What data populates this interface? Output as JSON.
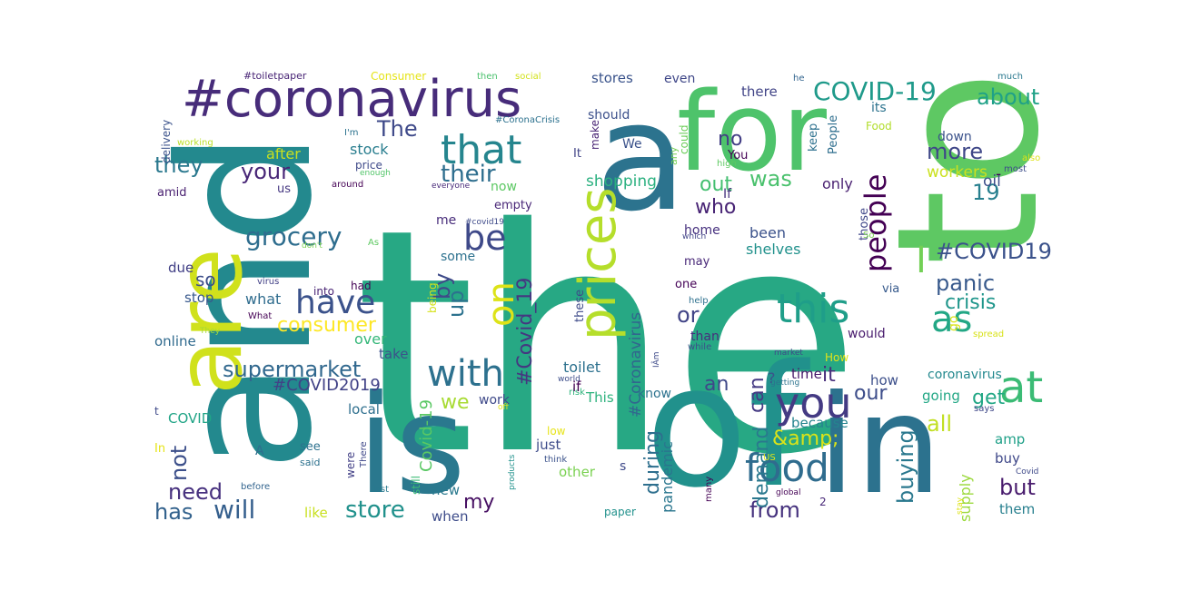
{
  "words": [
    {
      "text": "the",
      "color": "#27a884"
    },
    {
      "text": "to",
      "color": "#5ec863"
    },
    {
      "text": "and",
      "color": "#23898e"
    },
    {
      "text": "of",
      "color": "#21918c"
    },
    {
      "text": "in",
      "color": "#2c728e"
    },
    {
      "text": "a",
      "color": "#2c738e"
    },
    {
      "text": "for",
      "color": "#4ec36b"
    },
    {
      "text": "is",
      "color": "#2a788e"
    },
    {
      "text": "are",
      "color": "#d0e11c"
    },
    {
      "text": "#coronavirus",
      "color": "#472c7a"
    },
    {
      "text": "prices",
      "color": "#b5de2b"
    },
    {
      "text": "food",
      "color": "#2f6c8e"
    },
    {
      "text": "at",
      "color": "#3bbb75"
    },
    {
      "text": "you",
      "color": "#443a83"
    },
    {
      "text": "that",
      "color": "#25858e"
    },
    {
      "text": "this",
      "color": "#1f9e89"
    },
    {
      "text": "with",
      "color": "#2d718e"
    },
    {
      "text": "on",
      "color": "#dde318"
    },
    {
      "text": "as",
      "color": "#22a785"
    },
    {
      "text": "have",
      "color": "#3b528b"
    },
    {
      "text": "be",
      "color": "#3e4989"
    },
    {
      "text": "people",
      "color": "#440154"
    },
    {
      "text": "COVID-19",
      "color": "#1f9a8a"
    },
    {
      "text": "I",
      "color": "#73d056"
    },
    {
      "text": "will",
      "color": "#355f8d"
    },
    {
      "text": "grocery",
      "color": "#2e6d8e"
    },
    {
      "text": "supermarket",
      "color": "#31688e"
    },
    {
      "text": "#COVID19",
      "color": "#3b528b"
    },
    {
      "text": "your",
      "color": "#482677"
    },
    {
      "text": "their",
      "color": "#2e6e8e"
    },
    {
      "text": "store",
      "color": "#21918c"
    },
    {
      "text": "all",
      "color": "#c2df23"
    },
    {
      "text": "about",
      "color": "#1fa187"
    },
    {
      "text": "#Covid_19",
      "color": "#453781"
    },
    {
      "text": "they",
      "color": "#2a788e"
    },
    {
      "text": "has",
      "color": "#33628d"
    },
    {
      "text": "The",
      "color": "#3e4989"
    },
    {
      "text": "consumer",
      "color": "#fde725"
    },
    {
      "text": "panic",
      "color": "#38598c"
    },
    {
      "text": "up",
      "color": "#2c728e"
    },
    {
      "text": "from",
      "color": "#46327e"
    },
    {
      "text": "can",
      "color": "#443983"
    },
    {
      "text": "need",
      "color": "#46307e"
    },
    {
      "text": "by",
      "color": "#3e4a89"
    },
    {
      "text": "crisis",
      "color": "#1f968b"
    },
    {
      "text": "not",
      "color": "#3c4f8a"
    },
    {
      "text": "buying",
      "color": "#2a788e"
    },
    {
      "text": "but",
      "color": "#481b6d"
    },
    {
      "text": "&amp;",
      "color": "#dae319"
    },
    {
      "text": "my",
      "color": "#471063"
    },
    {
      "text": "demand",
      "color": "#2a788e"
    },
    {
      "text": "more",
      "color": "#3f4788"
    },
    {
      "text": "get",
      "color": "#22a785"
    },
    {
      "text": "during",
      "color": "#2e6f8e"
    },
    {
      "text": "or",
      "color": "#414487"
    },
    {
      "text": "who",
      "color": "#482475"
    },
    {
      "text": "19",
      "color": "#277f8e"
    },
    {
      "text": "our",
      "color": "#3d4d8a"
    },
    {
      "text": "it",
      "color": "#472d7b"
    },
    {
      "text": "was",
      "color": "#4ac16d"
    },
    {
      "text": "an",
      "color": "#3f4889"
    },
    {
      "text": "out",
      "color": "#44bf70"
    },
    {
      "text": "no",
      "color": "#433e85"
    },
    {
      "text": "we",
      "color": "#a8db34"
    },
    {
      "text": "so",
      "color": "#3d4e8a"
    },
    {
      "text": "#COVID2019",
      "color": "#414287"
    },
    {
      "text": "Covid-19",
      "color": "#5ac864"
    },
    {
      "text": "pandemic",
      "color": "#2a768e"
    },
    {
      "text": "#Coronavirus",
      "color": "#31668e"
    },
    {
      "text": "shopping",
      "color": "#2ab07f"
    },
    {
      "text": "supply",
      "color": "#9bd93c"
    },
    {
      "text": "workers",
      "color": "#cae11f"
    },
    {
      "text": "oil",
      "color": "#3d4e8a"
    },
    {
      "text": "shelves",
      "color": "#21918c"
    },
    {
      "text": "been",
      "color": "#3b528b"
    },
    {
      "text": "only",
      "color": "#481f70"
    },
    {
      "text": "stores",
      "color": "#3a538b"
    },
    {
      "text": "stock",
      "color": "#287d8e"
    },
    {
      "text": "after",
      "color": "#c8e020"
    },
    {
      "text": "what",
      "color": "#2f6c8e"
    },
    {
      "text": "due",
      "color": "#424086"
    },
    {
      "text": "stop",
      "color": "#38588c"
    },
    {
      "text": "online",
      "color": "#306a8e"
    },
    {
      "text": "over",
      "color": "#35b779"
    },
    {
      "text": "take",
      "color": "#3b528b"
    },
    {
      "text": "toilet",
      "color": "#2d718e"
    },
    {
      "text": "like",
      "color": "#c8e020"
    },
    {
      "text": "when",
      "color": "#3e4c8a"
    },
    {
      "text": "new",
      "color": "#29798e"
    },
    {
      "text": "local",
      "color": "#2e6f8e"
    },
    {
      "text": "COVID",
      "color": "#20a486"
    },
    {
      "text": "just",
      "color": "#3e4c8a"
    },
    {
      "text": "other",
      "color": "#7ad151"
    },
    {
      "text": "time",
      "color": "#48186a"
    },
    {
      "text": "know",
      "color": "#2c728e"
    },
    {
      "text": "This",
      "color": "#2db27d"
    },
    {
      "text": "because",
      "color": "#25848e"
    },
    {
      "text": "going",
      "color": "#22a785"
    },
    {
      "text": "coronavirus",
      "color": "#23888e"
    },
    {
      "text": "how",
      "color": "#3c4f8a"
    },
    {
      "text": "amp",
      "color": "#1fa088"
    },
    {
      "text": "buy",
      "color": "#3f4889"
    },
    {
      "text": "them",
      "color": "#277f8e"
    },
    {
      "text": "there",
      "color": "#414487"
    },
    {
      "text": "its",
      "color": "#2c738e"
    },
    {
      "text": "down",
      "color": "#3b528b"
    },
    {
      "text": "should",
      "color": "#3c508b"
    },
    {
      "text": "even",
      "color": "#3f4788"
    },
    {
      "text": "We",
      "color": "#3b528b"
    },
    {
      "text": "If",
      "color": "#46337f"
    },
    {
      "text": "now",
      "color": "#5cc863"
    },
    {
      "text": "empty",
      "color": "#482677"
    },
    {
      "text": "me",
      "color": "#472c7a"
    },
    {
      "text": "home",
      "color": "#46307e"
    },
    {
      "text": "may",
      "color": "#482878"
    },
    {
      "text": "one",
      "color": "#440256"
    },
    {
      "text": "than",
      "color": "#472e7c"
    },
    {
      "text": "would",
      "color": "#481b6d"
    },
    {
      "text": "go",
      "color": "#dae319"
    },
    {
      "text": "via",
      "color": "#375a8c"
    },
    {
      "text": "those",
      "color": "#3f4788"
    },
    {
      "text": "keep",
      "color": "#2d718e"
    },
    {
      "text": "People",
      "color": "#2e6e8e"
    },
    {
      "text": "Food",
      "color": "#b2dd2d"
    },
    {
      "text": "You",
      "color": "#440154"
    },
    {
      "text": "It",
      "color": "#414487"
    },
    {
      "text": "make",
      "color": "#482374"
    },
    {
      "text": "price",
      "color": "#3e4989"
    },
    {
      "text": "us",
      "color": "#453781"
    },
    {
      "text": "amid",
      "color": "#481f70"
    },
    {
      "text": "delivery",
      "color": "#3b528b"
    },
    {
      "text": "working",
      "color": "#bade28"
    },
    {
      "text": "I'm",
      "color": "#2c728e"
    },
    {
      "text": "#toiletpaper",
      "color": "#482475"
    },
    {
      "text": "Consumer",
      "color": "#e5e419"
    },
    {
      "text": "then",
      "color": "#4ac16d"
    },
    {
      "text": "social",
      "color": "#d2e21b"
    },
    {
      "text": "he",
      "color": "#32648e"
    },
    {
      "text": "much",
      "color": "#2a788e"
    },
    {
      "text": "#CoronaCrisis",
      "color": "#2c718e"
    },
    {
      "text": "could",
      "color": "#6ccd5a"
    },
    {
      "text": "any",
      "color": "#75d054"
    },
    {
      "text": "high",
      "color": "#5ec962"
    },
    {
      "text": "also",
      "color": "#dde318"
    },
    {
      "text": "most",
      "color": "#3d4d8a"
    },
    {
      "text": "enough",
      "color": "#52c569"
    },
    {
      "text": "around",
      "color": "#440154"
    },
    {
      "text": "everyone",
      "color": "#482979"
    },
    {
      "text": "#covid19",
      "color": "#3e4a89"
    },
    {
      "text": "which",
      "color": "#414487"
    },
    {
      "text": "don't",
      "color": "#7ad151"
    },
    {
      "text": "As",
      "color": "#5ec962"
    },
    {
      "text": "So",
      "color": "#7ad151"
    },
    {
      "text": "virus",
      "color": "#424086"
    },
    {
      "text": "What",
      "color": "#440154"
    },
    {
      "text": "had",
      "color": "#440154"
    },
    {
      "text": "into",
      "color": "#482374"
    },
    {
      "text": "some",
      "color": "#2c718e"
    },
    {
      "text": "being",
      "color": "#d5e21a"
    },
    {
      "text": "these",
      "color": "#3e4a89"
    },
    {
      "text": "help",
      "color": "#2d708e"
    },
    {
      "text": "while",
      "color": "#3c4f8a"
    },
    {
      "text": "spread",
      "color": "#d8e219"
    },
    {
      "text": "market",
      "color": "#3e4989"
    },
    {
      "text": "How",
      "color": "#e2e418"
    },
    {
      "text": "They",
      "color": "#a5db36"
    },
    {
      "text": "world",
      "color": "#3d4d8a"
    },
    {
      "text": "risk",
      "color": "#2fb47c"
    },
    {
      "text": "IÂm",
      "color": "#3e4a89"
    },
    {
      "text": "getting",
      "color": "#2c738e"
    },
    {
      "text": "says",
      "color": "#3f4788"
    },
    {
      "text": "off",
      "color": "#e7e419"
    },
    {
      "text": "low",
      "color": "#e7e419"
    },
    {
      "text": "There",
      "color": "#3f4889"
    },
    {
      "text": "products",
      "color": "#21918c"
    },
    {
      "text": "think",
      "color": "#3b528b"
    },
    {
      "text": "US",
      "color": "#dde318"
    },
    {
      "text": "paper",
      "color": "#21918c"
    },
    {
      "text": "s",
      "color": "#3e4989"
    },
    {
      "text": "many",
      "color": "#440154"
    },
    {
      "text": "2",
      "color": "#482878"
    },
    {
      "text": "global",
      "color": "#440154"
    },
    {
      "text": "stay",
      "color": "#dde318"
    },
    {
      "text": "Covid",
      "color": "#3e4989"
    },
    {
      "text": "t",
      "color": "#3e4989"
    },
    {
      "text": "In",
      "color": "#e5e419"
    },
    {
      "text": "A",
      "color": "#2e6e8e"
    },
    {
      "text": "see",
      "color": "#2d718e"
    },
    {
      "text": "said",
      "color": "#2d718e"
    },
    {
      "text": "were",
      "color": "#424086"
    },
    {
      "text": "still",
      "color": "#3bbb75"
    },
    {
      "text": "before",
      "color": "#32648e"
    },
    {
      "text": "last",
      "color": "#29798e"
    },
    {
      "text": "?",
      "color": "#3b528b"
    },
    {
      "text": "if",
      "color": "#440154"
    },
    {
      "text": "work",
      "color": "#3e4989"
    },
    {
      "text": "-",
      "color": "#440154"
    }
  ]
}
